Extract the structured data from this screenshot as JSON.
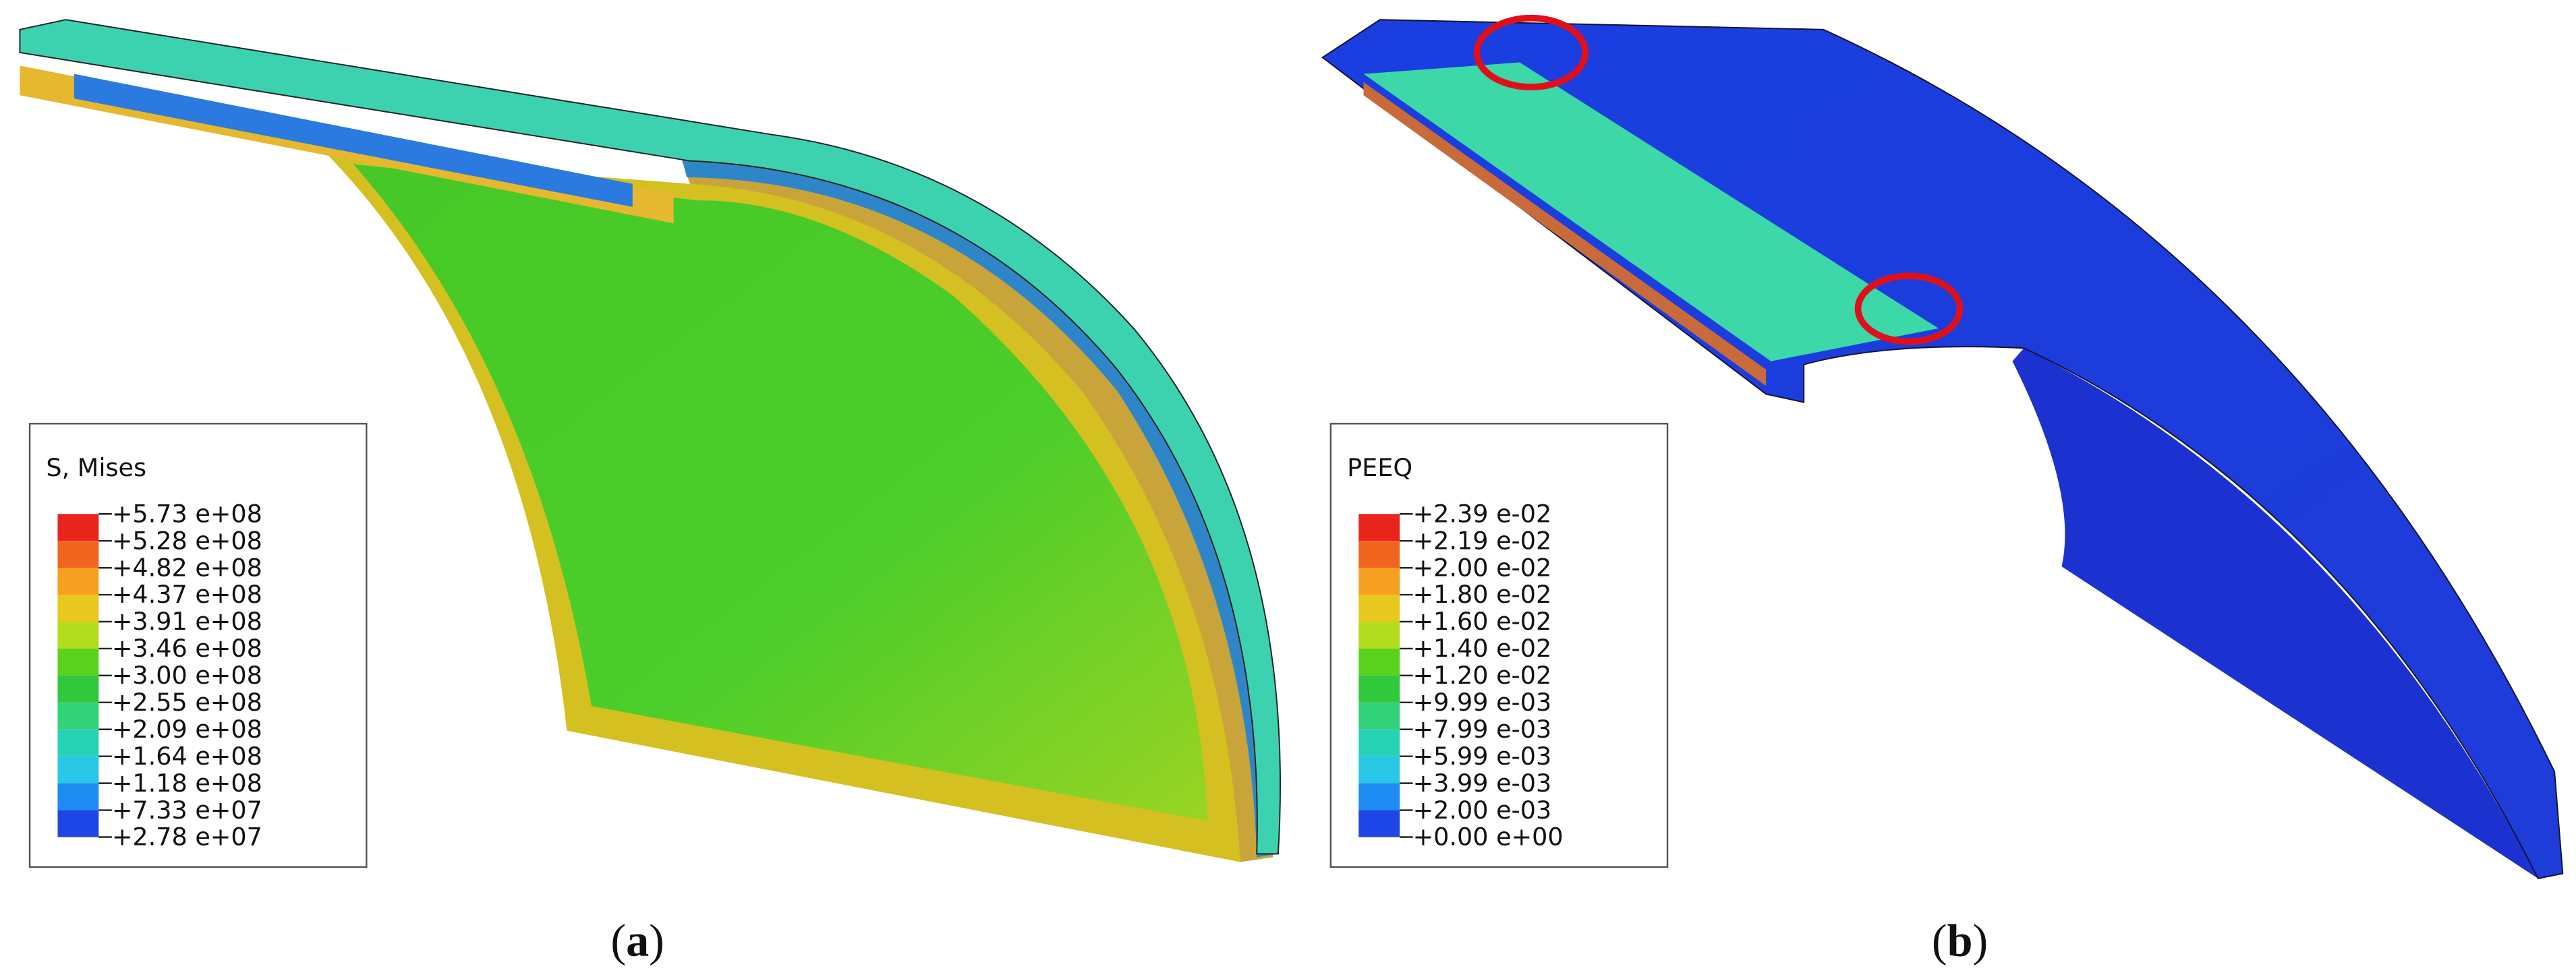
{
  "panels": [
    {
      "caption": [
        "(",
        "a",
        ")"
      ],
      "legend": {
        "title": "S, Mises",
        "labels": [
          "+5.73 e+08",
          "+5.28 e+08",
          "+4.82 e+08",
          "+4.37 e+08",
          "+3.91 e+08",
          "+3.46 e+08",
          "+3.00 e+08",
          "+2.55 e+08",
          "+2.09 e+08",
          "+1.64 e+08",
          "+1.18 e+08",
          "+7.33 e+07",
          "+2.78 e+07"
        ],
        "colors": [
          "#e8241c",
          "#f0641e",
          "#f5a020",
          "#e8c81e",
          "#b4dc1e",
          "#5ad21e",
          "#32c83c",
          "#32d278",
          "#28d2b4",
          "#28c8e6",
          "#1e8cf0",
          "#1e46e6"
        ]
      }
    },
    {
      "caption": [
        "(",
        "b",
        ")"
      ],
      "legend": {
        "title": "PEEQ",
        "labels": [
          "+2.39 e-02",
          "+2.19 e-02",
          "+2.00 e-02",
          "+1.80 e-02",
          "+1.60 e-02",
          "+1.40 e-02",
          "+1.20 e-02",
          "+9.99 e-03",
          "+7.99 e-03",
          "+5.99 e-03",
          "+3.99 e-03",
          "+2.00 e-03",
          "+0.00 e+00"
        ],
        "colors": [
          "#e8241c",
          "#f0641e",
          "#f5a020",
          "#e8c81e",
          "#b4dc1e",
          "#5ad21e",
          "#32c83c",
          "#32d278",
          "#28d2b4",
          "#28c8e6",
          "#1e8cf0",
          "#1e46e6"
        ]
      }
    }
  ]
}
